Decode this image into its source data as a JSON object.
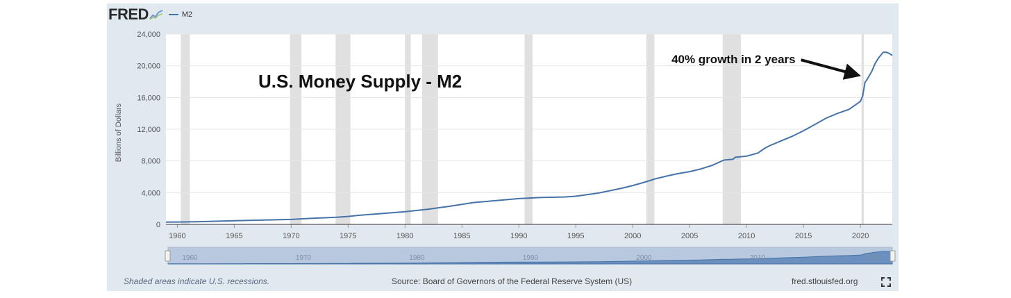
{
  "header": {
    "logo_text": "FRED",
    "logo_icon": "fred-trend-icon",
    "legend_label": "M2"
  },
  "chart_data": {
    "type": "line",
    "title": "U.S. Money Supply - M2",
    "ylabel": "Billions of Dollars",
    "xlabel": "",
    "xlim": [
      1959,
      2022.8
    ],
    "ylim": [
      0,
      24000
    ],
    "yticks": [
      0,
      4000,
      8000,
      12000,
      16000,
      20000,
      24000
    ],
    "ytick_labels": [
      "0",
      "4,000",
      "8,000",
      "12,000",
      "16,000",
      "20,000",
      "24,000"
    ],
    "xticks": [
      1960,
      1965,
      1970,
      1975,
      1980,
      1985,
      1990,
      1995,
      2000,
      2005,
      2010,
      2015,
      2020
    ],
    "xtick_labels": [
      "1960",
      "1965",
      "1970",
      "1975",
      "1980",
      "1985",
      "1990",
      "1995",
      "2000",
      "2005",
      "2010",
      "2015",
      "2020"
    ],
    "nav_labels": [
      "1960",
      "1970",
      "1980",
      "1990",
      "2000",
      "2010",
      "2020"
    ],
    "grid": true,
    "legend_placement": "top-left",
    "series": [
      {
        "name": "M2",
        "color": "#4572a7",
        "x": [
          1959,
          1960,
          1962,
          1965,
          1968,
          1970,
          1972,
          1974,
          1975,
          1976,
          1978,
          1980,
          1982,
          1984,
          1986,
          1988,
          1990,
          1992,
          1994,
          1995,
          1997,
          1999,
          2000,
          2001,
          2002,
          2003,
          2004,
          2005,
          2006,
          2007,
          2008,
          2008.8,
          2009,
          2010,
          2011,
          2011.6,
          2012,
          2013,
          2014,
          2015,
          2016,
          2017,
          2018,
          2019,
          2019.8,
          2020,
          2020.2,
          2020.4,
          2020.6,
          2021,
          2021.3,
          2021.6,
          2022,
          2022.3,
          2022.6,
          2022.8
        ],
        "y": [
          290,
          300,
          340,
          460,
          560,
          620,
          780,
          900,
          1000,
          1150,
          1370,
          1600,
          1900,
          2300,
          2750,
          3000,
          3250,
          3400,
          3450,
          3550,
          3950,
          4550,
          4900,
          5300,
          5750,
          6100,
          6400,
          6650,
          7000,
          7450,
          8100,
          8200,
          8450,
          8600,
          9000,
          9600,
          9900,
          10500,
          11100,
          11800,
          12600,
          13400,
          14000,
          14500,
          15300,
          15500,
          16200,
          17900,
          18300,
          19300,
          20300,
          21000,
          21700,
          21700,
          21500,
          21300
        ]
      }
    ],
    "recessions": [
      [
        1960.3,
        1961.1
      ],
      [
        1969.9,
        1970.9
      ],
      [
        1973.9,
        1975.2
      ],
      [
        1980.0,
        1980.5
      ],
      [
        1981.5,
        1982.9
      ],
      [
        1990.5,
        1991.2
      ],
      [
        2001.2,
        2001.9
      ],
      [
        2007.9,
        2009.5
      ],
      [
        2020.1,
        2020.3
      ]
    ],
    "annotations": [
      {
        "text": "40% growth in 2 years",
        "x": 2014.3,
        "y": 20300,
        "arrow_to": [
          2020.0,
          18800
        ]
      }
    ]
  },
  "footer": {
    "recession_note": "Shaded areas indicate U.S. recessions.",
    "source": "Source: Board of Governors of the Federal Reserve System (US)",
    "site": "fred.stlouisfed.org",
    "fullscreen_icon": "fullscreen-icon"
  }
}
